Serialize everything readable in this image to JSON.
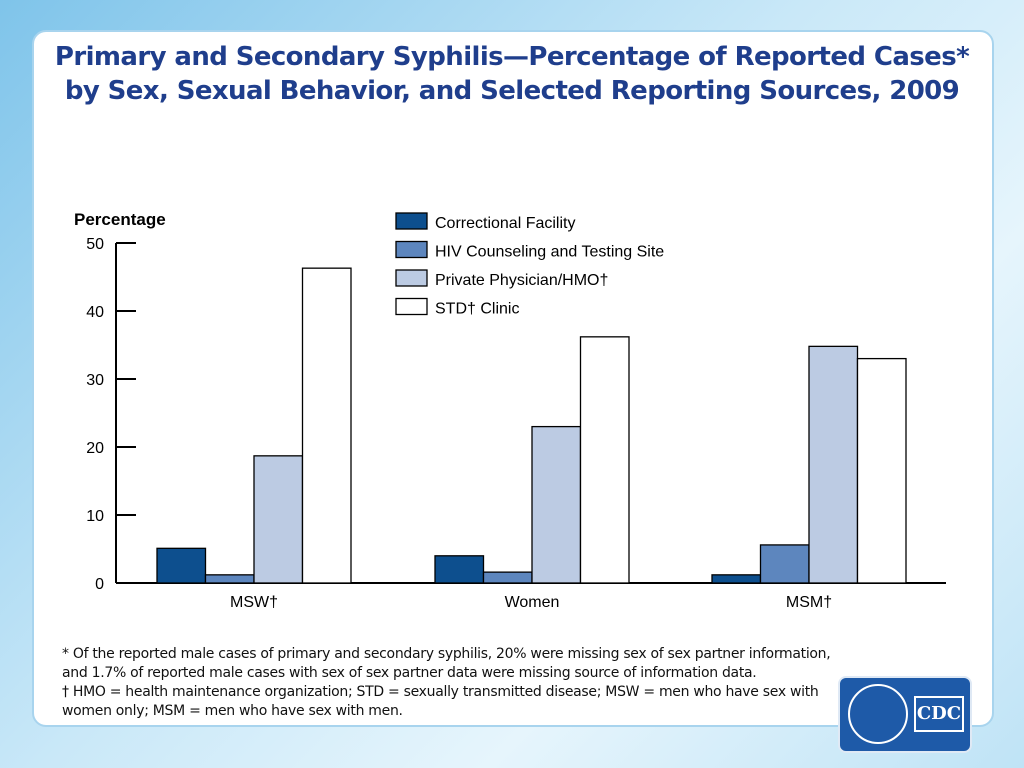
{
  "slide": {
    "title_line1": "Primary and Secondary Syphilis—Percentage of Reported Cases*",
    "title_line2": "by Sex, Sexual Behavior, and Selected Reporting Sources, 2009",
    "footnote1": "* Of the reported male cases of primary and secondary syphilis, 20% were missing sex of sex partner information,",
    "footnote2": "and 1.7% of reported male cases with sex of sex partner data were missing source of information data.",
    "footnote3": "† HMO = health maintenance organization; STD = sexually transmitted disease; MSW = men who have sex with",
    "footnote4": "women only; MSM = men who have sex with men.",
    "logo_text": "CDC",
    "logo_icon": "hhs-eagle-seal-icon"
  },
  "chart_data": {
    "type": "bar",
    "ylabel": "Percentage",
    "xlabel": "",
    "ylim": [
      0,
      50
    ],
    "yticks": [
      0,
      10,
      20,
      30,
      40,
      50
    ],
    "categories": [
      "MSW†",
      "Women",
      "MSM†"
    ],
    "legend_position": "top-center",
    "grid": false,
    "series": [
      {
        "name": "Correctional Facility",
        "color": "#0d4f8e",
        "values": [
          5.1,
          4.0,
          1.2
        ]
      },
      {
        "name": "HIV Counseling and Testing Site",
        "color": "#5d86be",
        "values": [
          1.2,
          1.6,
          5.6
        ]
      },
      {
        "name": "Private Physician/HMO†",
        "color": "#bccbe3",
        "values": [
          18.7,
          23.0,
          34.8
        ]
      },
      {
        "name": "STD† Clinic",
        "color": "#ffffff",
        "values": [
          46.3,
          36.2,
          33.0
        ]
      }
    ]
  }
}
